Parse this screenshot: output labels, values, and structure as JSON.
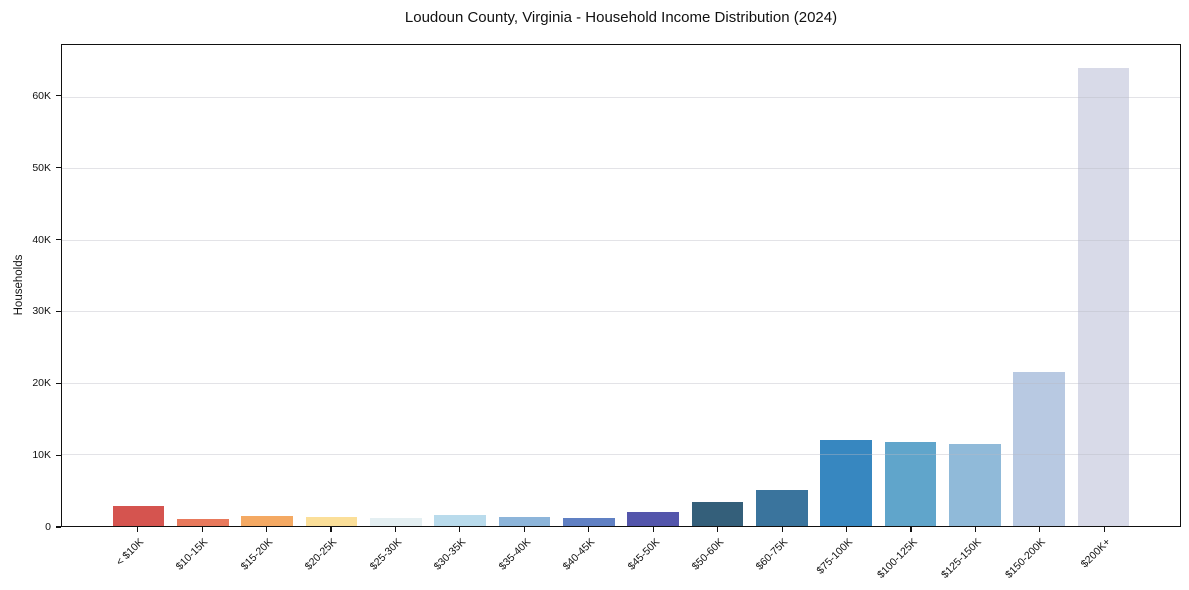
{
  "chart_data": {
    "type": "bar",
    "title": "Loudoun County, Virginia - Household Income Distribution (2024)",
    "xlabel": "",
    "ylabel": "Households",
    "categories": [
      "< $10K",
      "$10-15K",
      "$15-20K",
      "$20-25K",
      "$25-30K",
      "$30-35K",
      "$35-40K",
      "$40-45K",
      "$45-50K",
      "$50-60K",
      "$60-75K",
      "$75-100K",
      "$100-125K",
      "$125-150K",
      "$150-200K",
      "$200K+"
    ],
    "values": [
      2850,
      950,
      1350,
      1200,
      1100,
      1550,
      1250,
      1050,
      2000,
      3400,
      5100,
      12000,
      11800,
      11400,
      21500,
      64000
    ],
    "bar_colors": [
      "#d5544f",
      "#e8795c",
      "#f4a963",
      "#fbdf99",
      "#e4eff2",
      "#b9dbec",
      "#8db5da",
      "#6080c3",
      "#5355ab",
      "#345f7a",
      "#3a749d",
      "#3787c0",
      "#60a5cb",
      "#90bad9",
      "#b8c9e2",
      "#d8dae8"
    ],
    "ylim": [
      0,
      67200
    ],
    "xlim": [
      -1.19,
      16.19
    ],
    "bar_width_units": 0.8,
    "yticks": [
      0,
      10000,
      20000,
      30000,
      40000,
      50000,
      60000
    ],
    "ytick_labels": [
      "0",
      "10K",
      "20K",
      "30K",
      "40K",
      "50K",
      "60K"
    ],
    "grid": "horizontal",
    "legend": "none",
    "x_label_rotation_deg": 45
  }
}
